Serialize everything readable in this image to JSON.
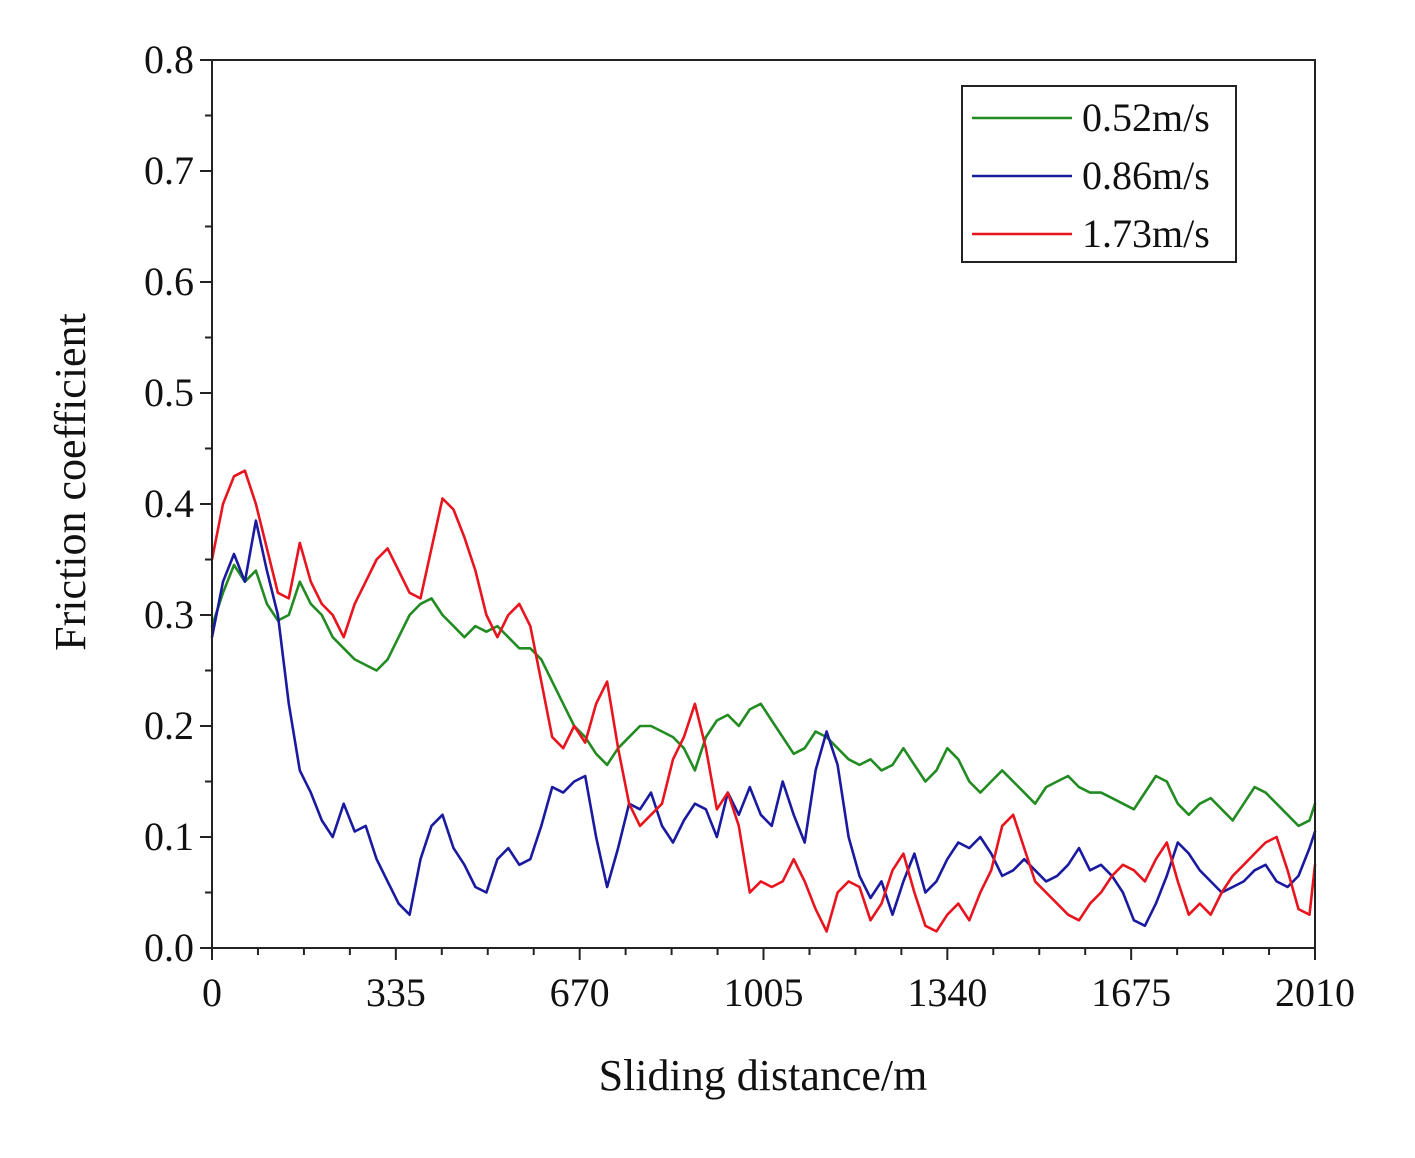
{
  "chart_data": {
    "type": "line",
    "title": "",
    "xlabel": "Sliding distance/m",
    "ylabel": "Friction coefficient",
    "xlim": [
      0,
      2010
    ],
    "ylim": [
      0.0,
      0.8
    ],
    "xticks": [
      0,
      335,
      670,
      1005,
      1340,
      1675,
      2010
    ],
    "xtick_labels": [
      "0",
      "335",
      "670",
      "1005",
      "1340",
      "1675",
      "2010"
    ],
    "yticks": [
      0.0,
      0.1,
      0.2,
      0.3,
      0.4,
      0.5,
      0.6,
      0.7,
      0.8
    ],
    "ytick_labels": [
      "0.0",
      "0.1",
      "0.2",
      "0.3",
      "0.4",
      "0.5",
      "0.6",
      "0.7",
      "0.8"
    ],
    "grid": false,
    "legend_position": "top-right",
    "series": [
      {
        "name": "0.52m/s",
        "color": "#228B22",
        "x": [
          0,
          20,
          40,
          60,
          80,
          100,
          120,
          140,
          160,
          180,
          200,
          220,
          240,
          260,
          280,
          300,
          320,
          340,
          360,
          380,
          400,
          420,
          440,
          460,
          480,
          500,
          520,
          540,
          560,
          580,
          600,
          620,
          640,
          660,
          680,
          700,
          720,
          740,
          760,
          780,
          800,
          820,
          840,
          860,
          880,
          900,
          920,
          940,
          960,
          980,
          1000,
          1020,
          1040,
          1060,
          1080,
          1100,
          1120,
          1140,
          1160,
          1180,
          1200,
          1220,
          1240,
          1260,
          1280,
          1300,
          1320,
          1340,
          1360,
          1380,
          1400,
          1420,
          1440,
          1460,
          1480,
          1500,
          1520,
          1540,
          1560,
          1580,
          1600,
          1620,
          1640,
          1660,
          1680,
          1700,
          1720,
          1740,
          1760,
          1780,
          1800,
          1820,
          1840,
          1860,
          1880,
          1900,
          1920,
          1940,
          1960,
          1980,
          2000,
          2010
        ],
        "values": [
          0.29,
          0.32,
          0.345,
          0.33,
          0.34,
          0.31,
          0.295,
          0.3,
          0.33,
          0.31,
          0.3,
          0.28,
          0.27,
          0.26,
          0.255,
          0.25,
          0.26,
          0.28,
          0.3,
          0.31,
          0.315,
          0.3,
          0.29,
          0.28,
          0.29,
          0.285,
          0.29,
          0.28,
          0.27,
          0.27,
          0.26,
          0.24,
          0.22,
          0.2,
          0.19,
          0.175,
          0.165,
          0.18,
          0.19,
          0.2,
          0.2,
          0.195,
          0.19,
          0.18,
          0.16,
          0.19,
          0.205,
          0.21,
          0.2,
          0.215,
          0.22,
          0.205,
          0.19,
          0.175,
          0.18,
          0.195,
          0.19,
          0.18,
          0.17,
          0.165,
          0.17,
          0.16,
          0.165,
          0.18,
          0.165,
          0.15,
          0.16,
          0.18,
          0.17,
          0.15,
          0.14,
          0.15,
          0.16,
          0.15,
          0.14,
          0.13,
          0.145,
          0.15,
          0.155,
          0.145,
          0.14,
          0.14,
          0.135,
          0.13,
          0.125,
          0.14,
          0.155,
          0.15,
          0.13,
          0.12,
          0.13,
          0.135,
          0.125,
          0.115,
          0.13,
          0.145,
          0.14,
          0.13,
          0.12,
          0.11,
          0.115,
          0.13
        ]
      },
      {
        "name": "0.86m/s",
        "color": "#1A1AA0",
        "x": [
          0,
          20,
          40,
          60,
          80,
          100,
          120,
          140,
          160,
          180,
          200,
          220,
          240,
          260,
          280,
          300,
          320,
          340,
          360,
          380,
          400,
          420,
          440,
          460,
          480,
          500,
          520,
          540,
          560,
          580,
          600,
          620,
          640,
          660,
          680,
          700,
          720,
          740,
          760,
          780,
          800,
          820,
          840,
          860,
          880,
          900,
          920,
          940,
          960,
          980,
          1000,
          1020,
          1040,
          1060,
          1080,
          1100,
          1120,
          1140,
          1160,
          1180,
          1200,
          1220,
          1240,
          1260,
          1280,
          1300,
          1320,
          1340,
          1360,
          1380,
          1400,
          1420,
          1440,
          1460,
          1480,
          1500,
          1520,
          1540,
          1560,
          1580,
          1600,
          1620,
          1640,
          1660,
          1680,
          1700,
          1720,
          1740,
          1760,
          1780,
          1800,
          1820,
          1840,
          1860,
          1880,
          1900,
          1920,
          1940,
          1960,
          1980,
          2000,
          2010
        ],
        "values": [
          0.28,
          0.33,
          0.355,
          0.33,
          0.385,
          0.34,
          0.3,
          0.22,
          0.16,
          0.14,
          0.115,
          0.1,
          0.13,
          0.105,
          0.11,
          0.08,
          0.06,
          0.04,
          0.03,
          0.08,
          0.11,
          0.12,
          0.09,
          0.075,
          0.055,
          0.05,
          0.08,
          0.09,
          0.075,
          0.08,
          0.11,
          0.145,
          0.14,
          0.15,
          0.155,
          0.1,
          0.055,
          0.09,
          0.13,
          0.125,
          0.14,
          0.11,
          0.095,
          0.115,
          0.13,
          0.125,
          0.1,
          0.14,
          0.12,
          0.145,
          0.12,
          0.11,
          0.15,
          0.12,
          0.095,
          0.16,
          0.195,
          0.165,
          0.1,
          0.065,
          0.045,
          0.06,
          0.03,
          0.06,
          0.085,
          0.05,
          0.06,
          0.08,
          0.095,
          0.09,
          0.1,
          0.085,
          0.065,
          0.07,
          0.08,
          0.07,
          0.06,
          0.065,
          0.075,
          0.09,
          0.07,
          0.075,
          0.065,
          0.05,
          0.025,
          0.02,
          0.04,
          0.065,
          0.095,
          0.085,
          0.07,
          0.06,
          0.05,
          0.055,
          0.06,
          0.07,
          0.075,
          0.06,
          0.055,
          0.065,
          0.09,
          0.105
        ]
      },
      {
        "name": "1.73m/s",
        "color": "#E8141E",
        "x": [
          0,
          20,
          40,
          60,
          80,
          100,
          120,
          140,
          160,
          180,
          200,
          220,
          240,
          260,
          280,
          300,
          320,
          340,
          360,
          380,
          400,
          420,
          440,
          460,
          480,
          500,
          520,
          540,
          560,
          580,
          600,
          620,
          640,
          660,
          680,
          700,
          720,
          740,
          760,
          780,
          800,
          820,
          840,
          860,
          880,
          900,
          920,
          940,
          960,
          980,
          1000,
          1020,
          1040,
          1060,
          1080,
          1100,
          1120,
          1140,
          1160,
          1180,
          1200,
          1220,
          1240,
          1260,
          1280,
          1300,
          1320,
          1340,
          1360,
          1380,
          1400,
          1420,
          1440,
          1460,
          1480,
          1500,
          1520,
          1540,
          1560,
          1580,
          1600,
          1620,
          1640,
          1660,
          1680,
          1700,
          1720,
          1740,
          1760,
          1780,
          1800,
          1820,
          1840,
          1860,
          1880,
          1900,
          1920,
          1940,
          1960,
          1980,
          2000,
          2010
        ],
        "values": [
          0.35,
          0.4,
          0.425,
          0.43,
          0.4,
          0.36,
          0.32,
          0.315,
          0.365,
          0.33,
          0.31,
          0.3,
          0.28,
          0.31,
          0.33,
          0.35,
          0.36,
          0.34,
          0.32,
          0.315,
          0.36,
          0.405,
          0.395,
          0.37,
          0.34,
          0.3,
          0.28,
          0.3,
          0.31,
          0.29,
          0.24,
          0.19,
          0.18,
          0.2,
          0.185,
          0.22,
          0.24,
          0.18,
          0.13,
          0.11,
          0.12,
          0.13,
          0.17,
          0.19,
          0.22,
          0.18,
          0.125,
          0.14,
          0.11,
          0.05,
          0.06,
          0.055,
          0.06,
          0.08,
          0.06,
          0.035,
          0.015,
          0.05,
          0.06,
          0.055,
          0.025,
          0.04,
          0.07,
          0.085,
          0.05,
          0.02,
          0.015,
          0.03,
          0.04,
          0.025,
          0.05,
          0.07,
          0.11,
          0.12,
          0.09,
          0.06,
          0.05,
          0.04,
          0.03,
          0.025,
          0.04,
          0.05,
          0.065,
          0.075,
          0.07,
          0.06,
          0.08,
          0.095,
          0.06,
          0.03,
          0.04,
          0.03,
          0.05,
          0.065,
          0.075,
          0.085,
          0.095,
          0.1,
          0.07,
          0.035,
          0.03,
          0.075
        ]
      }
    ]
  }
}
